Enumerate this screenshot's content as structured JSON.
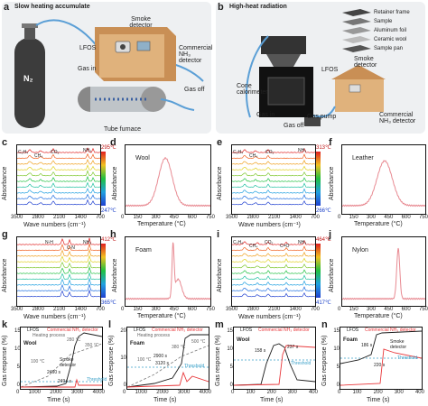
{
  "panel_a": {
    "label": "a",
    "title": "Slow heating accumulate",
    "smoke_detector": "Smoke detector",
    "lfos": "LFOS",
    "commercial_detector": "Commercial NH₃ detector",
    "gas_in": "Gas in",
    "gas_off": "Gas off",
    "n2": "N₂",
    "tube_furnace": "Tube furnace"
  },
  "panel_b": {
    "label": "b",
    "title": "High-heat radiation",
    "retainer_frame": "Retainer frame",
    "sample": "Sample",
    "aluminum_foil": "Aluminum foil",
    "ceramic_wool": "Ceramic wool",
    "sample_pan": "Sample pan",
    "cone_calorimeter": "Cone calorimeter",
    "smoke_detector": "Smoke detector",
    "lfos": "LFOS",
    "gas_in": "Gas in",
    "gas_off": "Gas off",
    "gas_pump": "Gas pump",
    "commercial_detector": "Commercial NH₃ detector"
  },
  "ftir": {
    "y_label": "Absorbance",
    "x_label": "Wave numbers (cm⁻¹)",
    "x_ticks": [
      "3500",
      "2800",
      "2100",
      "1400",
      "700"
    ],
    "c": {
      "label": "c",
      "top_temp": "295℃",
      "bottom_temp": "247℃",
      "peaks": [
        "C₂H₄",
        "CH₄",
        "CO₂",
        "NH₃"
      ]
    },
    "e": {
      "label": "e",
      "top_temp": "313℃",
      "bottom_temp": "266℃",
      "peaks": [
        "C₂H₄",
        "CH₄",
        "CO₂",
        "NH₃"
      ]
    },
    "g": {
      "label": "g",
      "top_temp": "412℃",
      "bottom_temp": "365℃",
      "peaks": [
        "N-H",
        "C-N",
        "NH₃"
      ]
    },
    "i": {
      "label": "i",
      "top_temp": "464℃",
      "bottom_temp": "417℃",
      "peaks": [
        "C₂H₄",
        "CH₄",
        "CO₂",
        "C=O",
        "NH₃"
      ]
    }
  },
  "tga": {
    "y_label": "Absorbance",
    "x_label": "Temperature (°C)",
    "x_ticks": [
      "0",
      "150",
      "300",
      "450",
      "600",
      "750"
    ],
    "d": {
      "label": "d",
      "material": "Wool"
    },
    "f": {
      "label": "f",
      "material": "Leather"
    },
    "h": {
      "label": "h",
      "material": "Foam"
    },
    "j": {
      "label": "j",
      "material": "Nylon"
    }
  },
  "response": {
    "y_label": "Gas response (%)",
    "x_label": "Time (s)",
    "legend_lfos": "LFOS",
    "legend_commercial": "Commercial NH₃ detector",
    "legend_heating": "Heating process",
    "threshold": "Threshold",
    "smoke_detector": "Smoke detector",
    "k": {
      "label": "k",
      "material": "Wool",
      "times": [
        "2460 s",
        "2494 s"
      ],
      "temps": [
        "100 °C",
        "280 °C",
        "350 °C"
      ],
      "x_ticks": [
        "0",
        "1000",
        "2000",
        "3000",
        "4000"
      ],
      "y_ticks": [
        "0",
        "5",
        "10",
        "15"
      ]
    },
    "l": {
      "label": "l",
      "material": "Foam",
      "times": [
        "2900 s",
        "3120 s"
      ],
      "temps": [
        "100 °C",
        "380 °C",
        "500 °C"
      ],
      "x_ticks": [
        "0",
        "1000",
        "2000",
        "3000",
        "4000"
      ],
      "y_ticks": [
        "0",
        "10",
        "20"
      ]
    },
    "m": {
      "label": "m",
      "material": "Wool",
      "times": [
        "158 s",
        "237 s"
      ],
      "x_ticks": [
        "0",
        "100",
        "200",
        "300",
        "400"
      ],
      "y_ticks": [
        "0",
        "5",
        "10",
        "15"
      ]
    },
    "n": {
      "label": "n",
      "material": "Foam",
      "times": [
        "186 s",
        "220 s"
      ],
      "x_ticks": [
        "0",
        "100",
        "200",
        "300",
        "400"
      ],
      "y_ticks": [
        "0",
        "5",
        "10",
        "15"
      ]
    }
  },
  "colors": {
    "lfos": "#1a1a1a",
    "commercial": "#e8373a",
    "heating": "#7a7a7a",
    "threshold": "#3aa0c8",
    "tga_line": "#e88a92",
    "cabinet": "#d9a56a",
    "cylinder": "#4a4a4a"
  }
}
